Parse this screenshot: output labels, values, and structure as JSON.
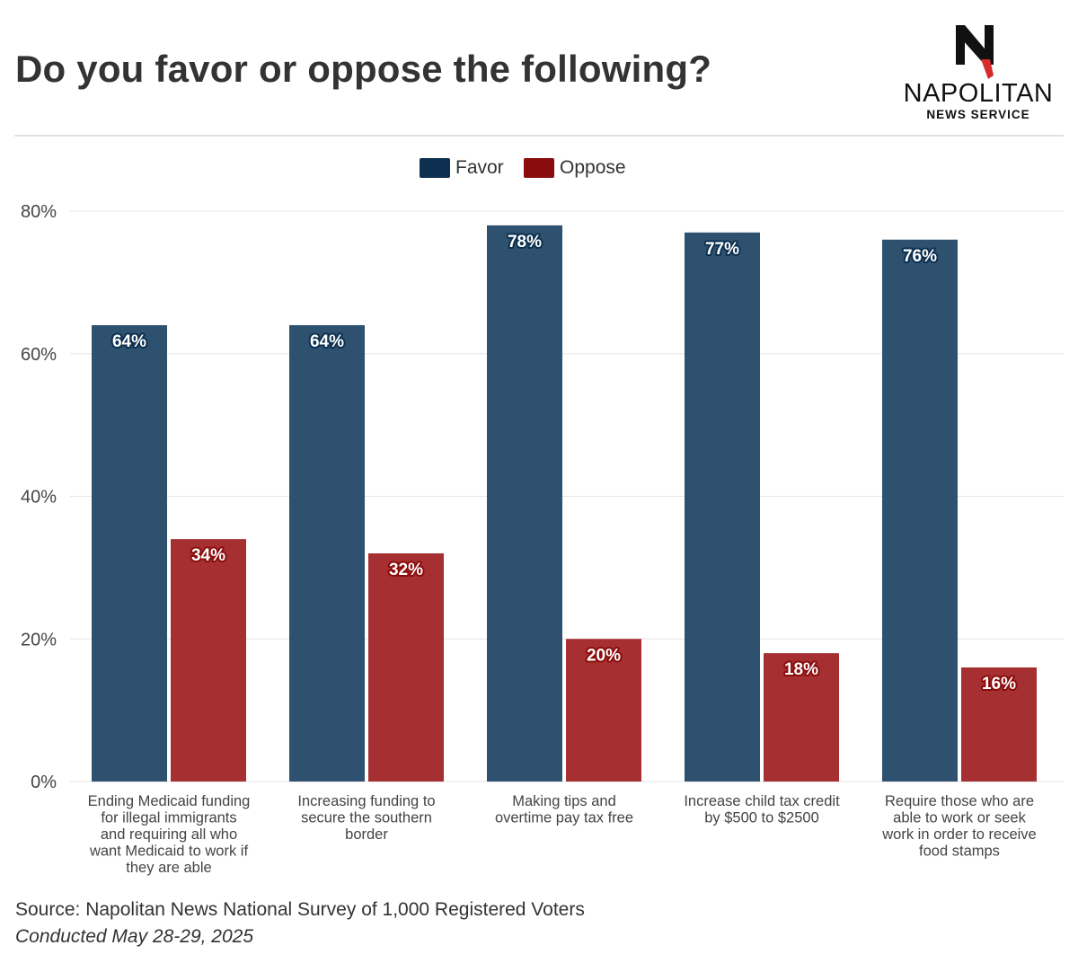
{
  "header": {
    "title": "Do you favor or oppose the following?"
  },
  "logo": {
    "name": "NAPOLITAN",
    "subtitle": "NEWS SERVICE",
    "colors": {
      "mark": "#111111",
      "accent": "#d62b2b"
    }
  },
  "legend": {
    "items": [
      {
        "label": "Favor",
        "color": "#0d3050"
      },
      {
        "label": "Oppose",
        "color": "#8b0c0c"
      }
    ]
  },
  "chart_data": {
    "type": "bar",
    "categories": [
      [
        "Ending Medicaid funding",
        "for illegal immigrants",
        "and requiring all who",
        "want Medicaid to work if",
        "they are able"
      ],
      [
        "Increasing funding to",
        "secure the southern",
        "border"
      ],
      [
        "Making tips and",
        "overtime pay tax free"
      ],
      [
        "Increase child tax credit",
        "by $500 to $2500"
      ],
      [
        "Require those who are",
        "able to work or seek",
        "work in order to receive",
        "food stamps"
      ]
    ],
    "series": [
      {
        "name": "Favor",
        "values": [
          64,
          64,
          78,
          77,
          76
        ],
        "color": "#2f5170",
        "label_color": "#0d3050"
      },
      {
        "name": "Oppose",
        "values": [
          34,
          32,
          20,
          18,
          16
        ],
        "color": "#a52f31",
        "label_color": "#8b0c0c"
      }
    ],
    "ylim": [
      0,
      80
    ],
    "yticks": [
      0,
      20,
      40,
      60,
      80
    ],
    "ytick_labels": [
      "0%",
      "20%",
      "40%",
      "60%",
      "80%"
    ],
    "value_suffix": "%",
    "grid": true,
    "legend_position": "top-center",
    "xlabel": "",
    "ylabel": ""
  },
  "footer": {
    "source": "Source: Napolitan News National Survey of 1,000 Registered Voters",
    "conducted": "Conducted May 28-29, 2025"
  }
}
